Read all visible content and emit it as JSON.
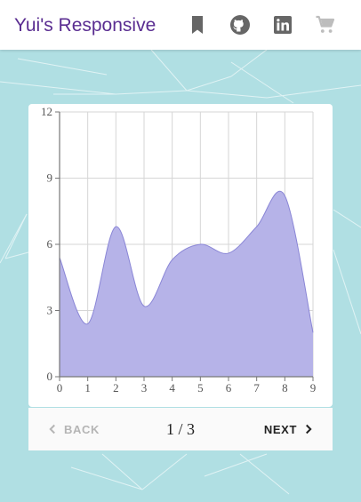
{
  "appbar": {
    "title": "Yui's Responsive",
    "title_color": "#5a2d91",
    "icons": [
      "bookmark-icon",
      "github-icon",
      "linkedin-icon",
      "cart-icon"
    ]
  },
  "stepper": {
    "back_label": "BACK",
    "next_label": "NEXT",
    "current": "1",
    "separator": "/",
    "total": "3"
  },
  "chart_data": {
    "type": "area",
    "x": [
      0,
      1,
      2,
      3,
      4,
      5,
      6,
      7,
      8,
      9
    ],
    "values": [
      5.4,
      2.4,
      6.8,
      3.2,
      5.3,
      6.0,
      5.6,
      6.8,
      8.2,
      2.0
    ],
    "xlim": [
      0,
      9
    ],
    "ylim": [
      0,
      12
    ],
    "x_ticks": [
      "0",
      "1",
      "2",
      "3",
      "4",
      "5",
      "6",
      "7",
      "8",
      "9"
    ],
    "y_ticks": [
      "0",
      "3",
      "6",
      "9",
      "12"
    ],
    "grid": true,
    "fill_color": "#b6b3e8",
    "stroke_color": "#8a86d6",
    "curve": "smooth"
  },
  "colors": {
    "background": "#b0dfe3",
    "card": "#ffffff",
    "stepper": "#fafafa"
  }
}
